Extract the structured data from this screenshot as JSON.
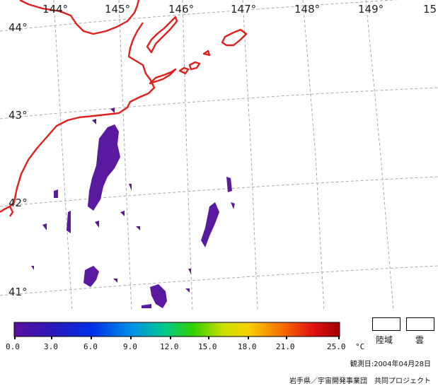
{
  "map": {
    "lon_labels": [
      "144°",
      "145°",
      "146°",
      "147°",
      "148°",
      "149°",
      "15"
    ],
    "lat_labels": [
      "44°",
      "43°",
      "42°",
      "41°"
    ]
  },
  "colorbar": {
    "ticks": [
      "0.0",
      "3.0",
      "6.0",
      "9.0",
      "12.0",
      "15.0",
      "18.0",
      "21.0",
      "25.0"
    ],
    "unit": "°C"
  },
  "legend": {
    "land_label": "陸域",
    "cloud_label": "雲"
  },
  "footer": {
    "observation_date": "観測日:2004年04月28日",
    "credit": "岩手県／宇宙開発事業団　共同プロジェクト"
  },
  "colors": {
    "coastline": "#e0201c",
    "grid": "#a8a8a8",
    "sst_cold": "#5a1aa0"
  }
}
